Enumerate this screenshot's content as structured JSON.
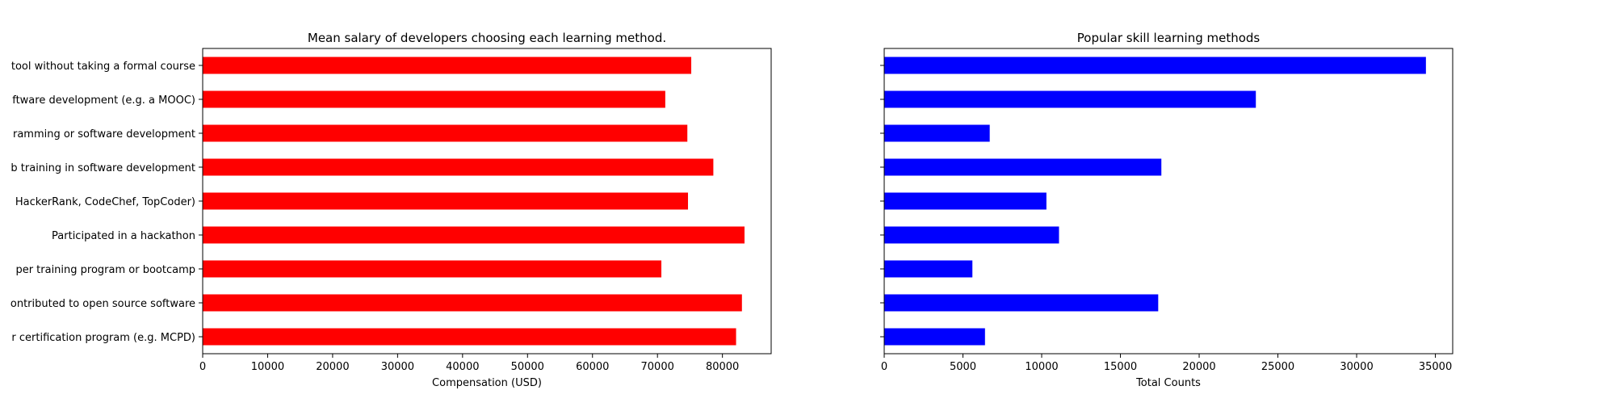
{
  "chart_data": [
    {
      "type": "bar",
      "orientation": "horizontal",
      "title": "Mean salary of developers choosing each learning method.",
      "xlabel": "Compensation (USD)",
      "ylabel": "",
      "xlim": [
        0,
        87500
      ],
      "xticks": [
        0,
        10000,
        20000,
        30000,
        40000,
        50000,
        60000,
        70000,
        80000
      ],
      "categories": [
        "tool without taking a formal course",
        "ftware development (e.g. a MOOC)",
        "ramming or software development",
        "b training in software development",
        "HackerRank, CodeChef, TopCoder)",
        "Participated in a hackathon",
        "per training program or bootcamp",
        "ontributed to open source software",
        "r certification program (e.g. MCPD)"
      ],
      "values": [
        75200,
        71200,
        74600,
        78600,
        74700,
        83400,
        70600,
        83000,
        82100
      ],
      "color": "#ff0000",
      "grid": false
    },
    {
      "type": "bar",
      "orientation": "horizontal",
      "title": "Popular skill learning methods",
      "xlabel": "Total Counts",
      "ylabel": "",
      "xlim": [
        0,
        36100
      ],
      "xticks": [
        0,
        5000,
        10000,
        15000,
        20000,
        25000,
        30000,
        35000
      ],
      "values": [
        34400,
        23600,
        6700,
        17600,
        10300,
        11100,
        5600,
        17400,
        6400
      ],
      "color": "#0000ff",
      "grid": false
    }
  ]
}
